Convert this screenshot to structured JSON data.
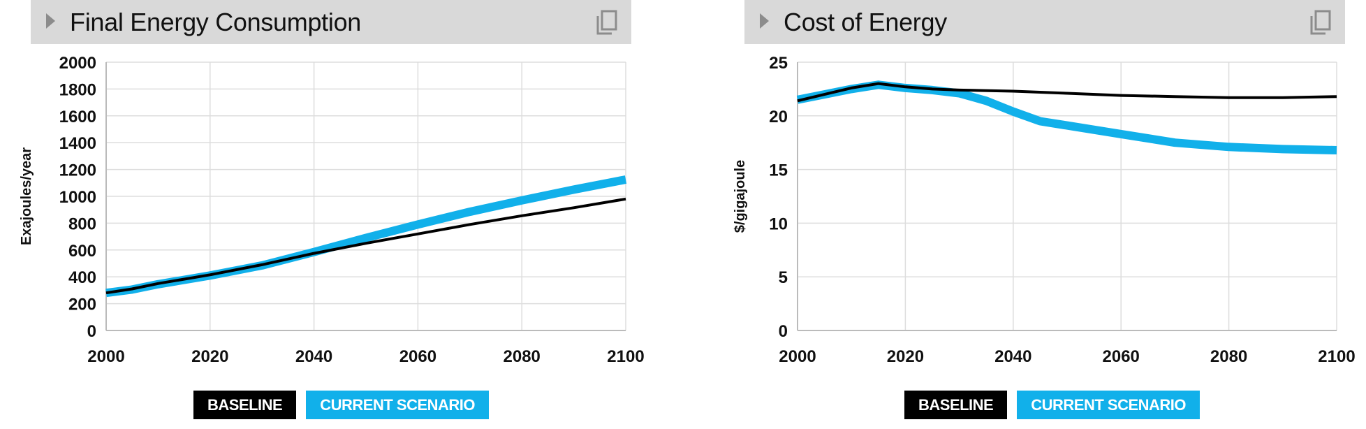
{
  "panels": [
    {
      "title": "Final Energy Consumption",
      "legend": {
        "baseline": "BASELINE",
        "scenario": "CURRENT SCENARIO"
      }
    },
    {
      "title": "Cost of Energy",
      "legend": {
        "baseline": "BASELINE",
        "scenario": "CURRENT SCENARIO"
      }
    }
  ],
  "colors": {
    "baseline": "#000000",
    "scenario": "#11b0ea",
    "grid": "#dddddd",
    "header": "#d9d9d9"
  },
  "icons": {
    "expand": "caret-right-icon",
    "copy": "copy-icon"
  },
  "chart_data": [
    {
      "type": "line",
      "title": "Final Energy Consumption",
      "ylabel": "Exajoules/year",
      "xlim": [
        2000,
        2100
      ],
      "ylim": [
        0,
        2000
      ],
      "xticks": [
        2000,
        2020,
        2040,
        2060,
        2080,
        2100
      ],
      "yticks": [
        0,
        200,
        400,
        600,
        800,
        1000,
        1200,
        1400,
        1600,
        1800,
        2000
      ],
      "grid": true,
      "legend_position": "bottom",
      "series": [
        {
          "name": "BASELINE",
          "color": "#000000",
          "width": 4,
          "x": [
            2000,
            2005,
            2010,
            2020,
            2030,
            2040,
            2050,
            2060,
            2070,
            2080,
            2090,
            2100
          ],
          "y": [
            280,
            310,
            350,
            415,
            490,
            575,
            650,
            720,
            790,
            855,
            915,
            980
          ]
        },
        {
          "name": "CURRENT SCENARIO",
          "color": "#11b0ea",
          "width": 12,
          "x": [
            2000,
            2005,
            2010,
            2020,
            2030,
            2040,
            2050,
            2060,
            2070,
            2080,
            2090,
            2100
          ],
          "y": [
            280,
            305,
            345,
            410,
            485,
            585,
            690,
            790,
            885,
            970,
            1050,
            1125
          ]
        }
      ]
    },
    {
      "type": "line",
      "title": "Cost of Energy",
      "ylabel": "$/gigajoule",
      "xlim": [
        2000,
        2100
      ],
      "ylim": [
        0,
        25
      ],
      "xticks": [
        2000,
        2020,
        2040,
        2060,
        2080,
        2100
      ],
      "yticks": [
        0,
        5,
        10,
        15,
        20,
        25
      ],
      "grid": true,
      "legend_position": "bottom",
      "series": [
        {
          "name": "BASELINE",
          "color": "#000000",
          "width": 4,
          "x": [
            2000,
            2005,
            2010,
            2015,
            2020,
            2025,
            2030,
            2040,
            2050,
            2060,
            2070,
            2080,
            2090,
            2100
          ],
          "y": [
            21.4,
            22.0,
            22.6,
            23.0,
            22.7,
            22.5,
            22.4,
            22.3,
            22.1,
            21.9,
            21.8,
            21.7,
            21.7,
            21.8
          ]
        },
        {
          "name": "CURRENT SCENARIO",
          "color": "#11b0ea",
          "width": 12,
          "x": [
            2000,
            2005,
            2010,
            2015,
            2020,
            2025,
            2030,
            2035,
            2040,
            2045,
            2050,
            2060,
            2070,
            2080,
            2090,
            2100
          ],
          "y": [
            21.5,
            22.0,
            22.5,
            22.9,
            22.6,
            22.4,
            22.1,
            21.4,
            20.4,
            19.5,
            19.1,
            18.3,
            17.5,
            17.1,
            16.9,
            16.8
          ]
        }
      ]
    }
  ]
}
